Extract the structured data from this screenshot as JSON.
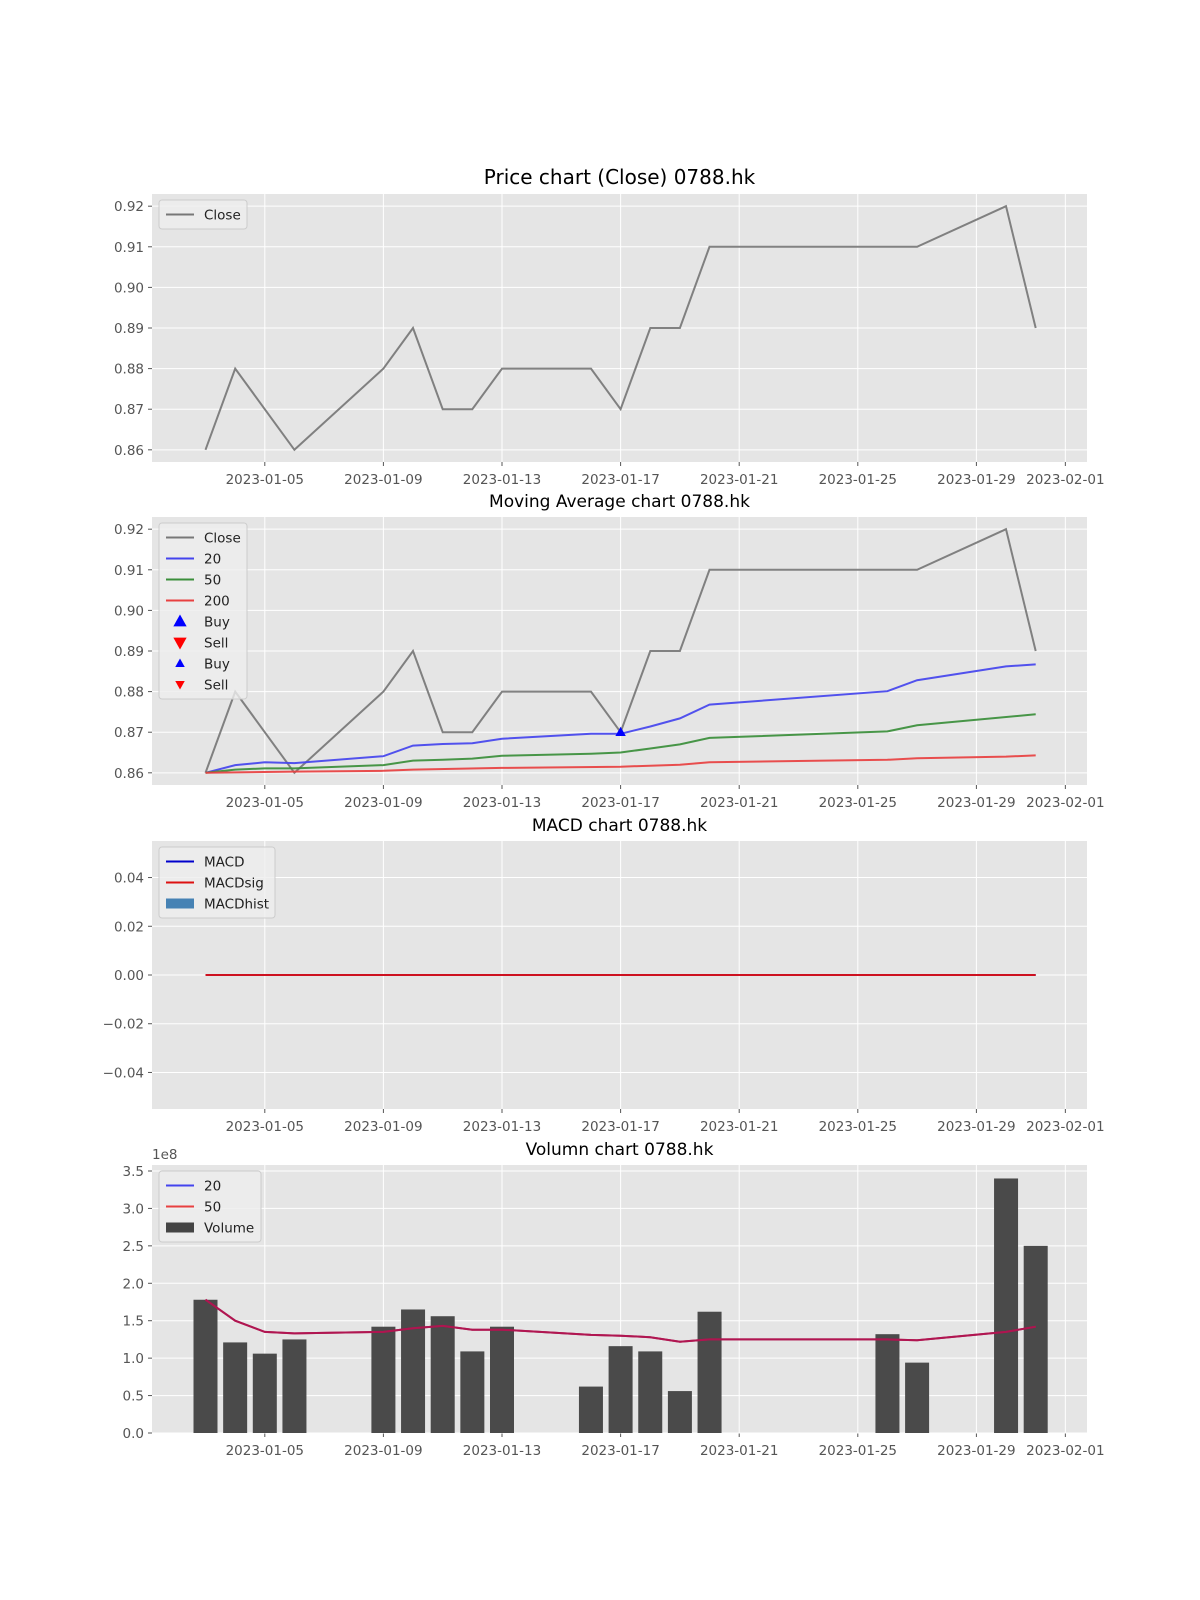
{
  "figure": {
    "colors": {
      "background": "#ffffff",
      "axes_bg": "#e5e5e5",
      "grid": "#ffffff",
      "tick_text": "#555555",
      "title_text": "#000000",
      "close": "#777777",
      "ma20": "#4444ee",
      "ma50": "#3a8e3a",
      "ma200": "#e84040",
      "buy": "#0000ff",
      "sell": "#ff0000",
      "macd": "#0000cc",
      "macdsig": "#dd1111",
      "macdhist": "#4682b4",
      "volume_bar": "#444444",
      "vol_ma20": "#4444ee",
      "vol_ma50": "#e84040",
      "vol_ma_overlap": "#b01550"
    }
  },
  "chart_data": [
    {
      "type": "line",
      "title": "Price chart (Close) 0788.hk",
      "x_ticks": [
        "2023-01-05",
        "2023-01-09",
        "2023-01-13",
        "2023-01-17",
        "2023-01-21",
        "2023-01-25",
        "2023-01-29",
        "2023-02-01"
      ],
      "y_ticks": [
        "0.86",
        "0.87",
        "0.88",
        "0.89",
        "0.90",
        "0.91",
        "0.92"
      ],
      "ylim": [
        0.857,
        0.923
      ],
      "grid": true,
      "legend": {
        "position": "top-left",
        "entries": [
          {
            "label": "Close",
            "kind": "line",
            "color_key": "close"
          }
        ]
      },
      "series": [
        {
          "name": "Close",
          "color_key": "close",
          "x": [
            "2023-01-03",
            "2023-01-04",
            "2023-01-06",
            "2023-01-09",
            "2023-01-10",
            "2023-01-11",
            "2023-01-12",
            "2023-01-13",
            "2023-01-16",
            "2023-01-17",
            "2023-01-18",
            "2023-01-19",
            "2023-01-20",
            "2023-01-26",
            "2023-01-27",
            "2023-01-30",
            "2023-01-31"
          ],
          "y": [
            0.86,
            0.88,
            0.86,
            0.88,
            0.89,
            0.87,
            0.87,
            0.88,
            0.88,
            0.87,
            0.89,
            0.89,
            0.91,
            0.91,
            0.91,
            0.92,
            0.89
          ]
        }
      ]
    },
    {
      "type": "line",
      "title": "Moving Average chart 0788.hk",
      "x_ticks": [
        "2023-01-05",
        "2023-01-09",
        "2023-01-13",
        "2023-01-17",
        "2023-01-21",
        "2023-01-25",
        "2023-01-29",
        "2023-02-01"
      ],
      "y_ticks": [
        "0.86",
        "0.87",
        "0.88",
        "0.89",
        "0.90",
        "0.91",
        "0.92"
      ],
      "ylim": [
        0.857,
        0.923
      ],
      "grid": true,
      "legend": {
        "position": "top-left",
        "entries": [
          {
            "label": "Close",
            "kind": "line",
            "color_key": "close"
          },
          {
            "label": "20",
            "kind": "line",
            "color_key": "ma20"
          },
          {
            "label": "50",
            "kind": "line",
            "color_key": "ma50"
          },
          {
            "label": "200",
            "kind": "line",
            "color_key": "ma200"
          },
          {
            "label": "Buy",
            "kind": "up",
            "color_key": "buy",
            "size": "large"
          },
          {
            "label": "Sell",
            "kind": "down",
            "color_key": "sell",
            "size": "large"
          },
          {
            "label": "Buy",
            "kind": "up",
            "color_key": "buy",
            "size": "small"
          },
          {
            "label": "Sell",
            "kind": "down",
            "color_key": "sell",
            "size": "small"
          }
        ]
      },
      "series": [
        {
          "name": "Close",
          "color_key": "close",
          "x": [
            "2023-01-03",
            "2023-01-04",
            "2023-01-06",
            "2023-01-09",
            "2023-01-10",
            "2023-01-11",
            "2023-01-12",
            "2023-01-13",
            "2023-01-16",
            "2023-01-17",
            "2023-01-18",
            "2023-01-19",
            "2023-01-20",
            "2023-01-26",
            "2023-01-27",
            "2023-01-30",
            "2023-01-31"
          ],
          "y": [
            0.86,
            0.88,
            0.86,
            0.88,
            0.89,
            0.87,
            0.87,
            0.88,
            0.88,
            0.87,
            0.89,
            0.89,
            0.91,
            0.91,
            0.91,
            0.92,
            0.89
          ]
        },
        {
          "name": "20",
          "color_key": "ma20",
          "x": [
            "2023-01-03",
            "2023-01-04",
            "2023-01-05",
            "2023-01-06",
            "2023-01-09",
            "2023-01-10",
            "2023-01-11",
            "2023-01-12",
            "2023-01-13",
            "2023-01-16",
            "2023-01-17",
            "2023-01-18",
            "2023-01-19",
            "2023-01-20",
            "2023-01-26",
            "2023-01-27",
            "2023-01-30",
            "2023-01-31"
          ],
          "y": [
            0.86,
            0.8619,
            0.8626,
            0.8624,
            0.8641,
            0.8667,
            0.8671,
            0.8673,
            0.8684,
            0.8696,
            0.8696,
            0.8714,
            0.8734,
            0.8768,
            0.8801,
            0.8828,
            0.8862,
            0.8867
          ]
        },
        {
          "name": "50",
          "color_key": "ma50",
          "x": [
            "2023-01-03",
            "2023-01-04",
            "2023-01-05",
            "2023-01-06",
            "2023-01-09",
            "2023-01-10",
            "2023-01-11",
            "2023-01-12",
            "2023-01-13",
            "2023-01-16",
            "2023-01-17",
            "2023-01-18",
            "2023-01-19",
            "2023-01-20",
            "2023-01-26",
            "2023-01-27",
            "2023-01-31"
          ],
          "y": [
            0.86,
            0.8608,
            0.8611,
            0.8611,
            0.8619,
            0.863,
            0.8632,
            0.8635,
            0.8642,
            0.8647,
            0.865,
            0.866,
            0.867,
            0.8686,
            0.8702,
            0.8717,
            0.8744
          ]
        },
        {
          "name": "200",
          "color_key": "ma200",
          "x": [
            "2023-01-03",
            "2023-01-06",
            "2023-01-09",
            "2023-01-10",
            "2023-01-13",
            "2023-01-17",
            "2023-01-19",
            "2023-01-20",
            "2023-01-26",
            "2023-01-27",
            "2023-01-30",
            "2023-01-31"
          ],
          "y": [
            0.86,
            0.8603,
            0.8605,
            0.8608,
            0.8612,
            0.8615,
            0.862,
            0.8626,
            0.8632,
            0.8636,
            0.864,
            0.8643
          ]
        }
      ],
      "markers": [
        {
          "label": "Buy",
          "kind": "up",
          "color_key": "buy",
          "x": "2023-01-17",
          "y": 0.87
        }
      ]
    },
    {
      "type": "line",
      "title": "MACD chart 0788.hk",
      "x_ticks": [
        "2023-01-05",
        "2023-01-09",
        "2023-01-13",
        "2023-01-17",
        "2023-01-21",
        "2023-01-25",
        "2023-01-29",
        "2023-02-01"
      ],
      "y_ticks": [
        "−0.04",
        "−0.02",
        "0.00",
        "0.02",
        "0.04"
      ],
      "ylim": [
        -0.055,
        0.055
      ],
      "grid": true,
      "legend": {
        "position": "top-left",
        "entries": [
          {
            "label": "MACD",
            "kind": "line",
            "color_key": "macd"
          },
          {
            "label": "MACDsig",
            "kind": "line",
            "color_key": "macdsig"
          },
          {
            "label": "MACDhist",
            "kind": "patch",
            "color_key": "macdhist"
          }
        ]
      },
      "series": [
        {
          "name": "MACD",
          "color_key": "macd",
          "x": [
            "2023-01-03",
            "2023-01-31"
          ],
          "y": [
            0,
            0
          ]
        },
        {
          "name": "MACDsig",
          "color_key": "macdsig",
          "x": [
            "2023-01-03",
            "2023-01-31"
          ],
          "y": [
            0,
            0
          ]
        }
      ]
    },
    {
      "type": "bar",
      "title": "Volumn chart 0788.hk",
      "y_offset_label": "1e8",
      "x_ticks": [
        "2023-01-05",
        "2023-01-09",
        "2023-01-13",
        "2023-01-17",
        "2023-01-21",
        "2023-01-25",
        "2023-01-29",
        "2023-02-01"
      ],
      "y_ticks": [
        "0.0",
        "0.5",
        "1.0",
        "1.5",
        "2.0",
        "2.5",
        "3.0",
        "3.5"
      ],
      "ylim": [
        0,
        3.58
      ],
      "grid": true,
      "legend": {
        "position": "top-left",
        "entries": [
          {
            "label": "20",
            "kind": "line",
            "color_key": "vol_ma20"
          },
          {
            "label": "50",
            "kind": "line",
            "color_key": "vol_ma50"
          },
          {
            "label": "Volume",
            "kind": "patch",
            "color_key": "volume_bar"
          }
        ]
      },
      "bars": {
        "name": "Volume",
        "color_key": "volume_bar",
        "x": [
          "2023-01-03",
          "2023-01-04",
          "2023-01-05",
          "2023-01-06",
          "2023-01-09",
          "2023-01-10",
          "2023-01-11",
          "2023-01-12",
          "2023-01-13",
          "2023-01-16",
          "2023-01-17",
          "2023-01-18",
          "2023-01-19",
          "2023-01-20",
          "2023-01-26",
          "2023-01-27",
          "2023-01-30",
          "2023-01-31"
        ],
        "values": [
          1.78,
          1.21,
          1.06,
          1.25,
          1.42,
          1.65,
          1.56,
          1.09,
          1.42,
          0.62,
          1.16,
          1.09,
          0.56,
          1.62,
          1.32,
          0.94,
          3.4,
          2.5
        ]
      },
      "series": [
        {
          "name": "20",
          "color_key": "vol_ma_overlap",
          "x": [
            "2023-01-03",
            "2023-01-04",
            "2023-01-05",
            "2023-01-06",
            "2023-01-09",
            "2023-01-10",
            "2023-01-11",
            "2023-01-12",
            "2023-01-13",
            "2023-01-16",
            "2023-01-17",
            "2023-01-18",
            "2023-01-19",
            "2023-01-20",
            "2023-01-26",
            "2023-01-27",
            "2023-01-30",
            "2023-01-31"
          ],
          "y": [
            1.78,
            1.5,
            1.35,
            1.33,
            1.35,
            1.4,
            1.43,
            1.38,
            1.38,
            1.31,
            1.3,
            1.28,
            1.22,
            1.25,
            1.25,
            1.24,
            1.35,
            1.42
          ]
        },
        {
          "name": "50",
          "color_key": "vol_ma_overlap",
          "x": [
            "2023-01-03",
            "2023-01-04",
            "2023-01-05",
            "2023-01-06",
            "2023-01-09",
            "2023-01-10",
            "2023-01-11",
            "2023-01-12",
            "2023-01-13",
            "2023-01-16",
            "2023-01-17",
            "2023-01-18",
            "2023-01-19",
            "2023-01-20",
            "2023-01-26",
            "2023-01-27",
            "2023-01-30",
            "2023-01-31"
          ],
          "y": [
            1.78,
            1.5,
            1.35,
            1.33,
            1.35,
            1.4,
            1.43,
            1.38,
            1.38,
            1.31,
            1.3,
            1.28,
            1.22,
            1.25,
            1.25,
            1.24,
            1.35,
            1.42
          ]
        }
      ]
    }
  ]
}
